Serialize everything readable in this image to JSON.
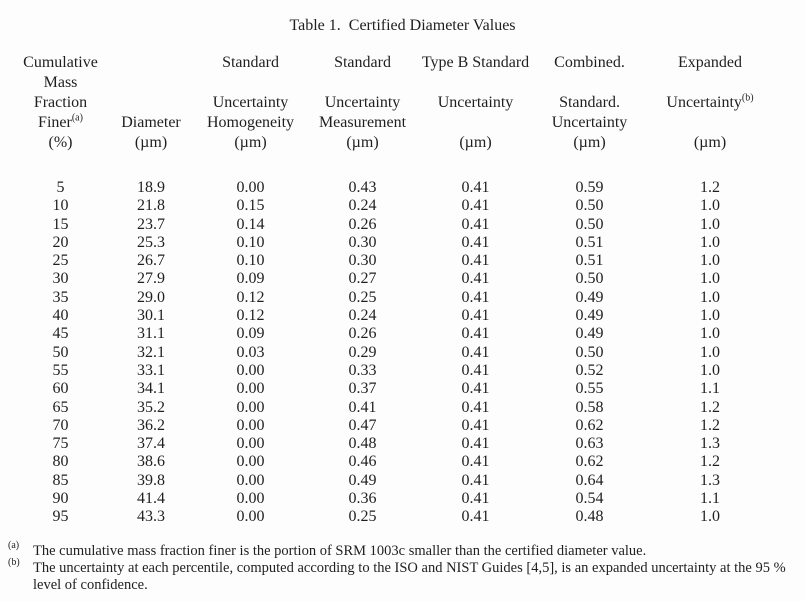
{
  "title": "Table 1.  Certified Diameter Values",
  "table": {
    "header_rows": [
      [
        "Cumulative",
        "",
        "Standard",
        "Standard",
        "Type B Standard",
        "Combined.",
        "Expanded"
      ],
      [
        "Mass Fraction",
        "",
        "Uncertainty",
        "Uncertainty",
        "Uncertainty",
        "Standard.",
        "Uncertainty^(b)"
      ],
      [
        "Finer^(a)",
        "Diameter",
        "Homogeneity",
        "Measurement",
        "",
        "Uncertainty",
        ""
      ],
      [
        "(%)",
        "(µm)",
        "(µm)",
        "(µm)",
        "(µm)",
        "(µm)",
        "(µm)"
      ]
    ],
    "rows": [
      [
        "5",
        "18.9",
        "0.00",
        "0.43",
        "0.41",
        "0.59",
        "1.2"
      ],
      [
        "10",
        "21.8",
        "0.15",
        "0.24",
        "0.41",
        "0.50",
        "1.0"
      ],
      [
        "15",
        "23.7",
        "0.14",
        "0.26",
        "0.41",
        "0.50",
        "1.0"
      ],
      [
        "20",
        "25.3",
        "0.10",
        "0.30",
        "0.41",
        "0.51",
        "1.0"
      ],
      [
        "25",
        "26.7",
        "0.10",
        "0.30",
        "0.41",
        "0.51",
        "1.0"
      ],
      [
        "30",
        "27.9",
        "0.09",
        "0.27",
        "0.41",
        "0.50",
        "1.0"
      ],
      [
        "35",
        "29.0",
        "0.12",
        "0.25",
        "0.41",
        "0.49",
        "1.0"
      ],
      [
        "40",
        "30.1",
        "0.12",
        "0.24",
        "0.41",
        "0.49",
        "1.0"
      ],
      [
        "45",
        "31.1",
        "0.09",
        "0.26",
        "0.41",
        "0.49",
        "1.0"
      ],
      [
        "50",
        "32.1",
        "0.03",
        "0.29",
        "0.41",
        "0.50",
        "1.0"
      ],
      [
        "55",
        "33.1",
        "0.00",
        "0.33",
        "0.41",
        "0.52",
        "1.0"
      ],
      [
        "60",
        "34.1",
        "0.00",
        "0.37",
        "0.41",
        "0.55",
        "1.1"
      ],
      [
        "65",
        "35.2",
        "0.00",
        "0.41",
        "0.41",
        "0.58",
        "1.2"
      ],
      [
        "70",
        "36.2",
        "0.00",
        "0.47",
        "0.41",
        "0.62",
        "1.2"
      ],
      [
        "75",
        "37.4",
        "0.00",
        "0.48",
        "0.41",
        "0.63",
        "1.3"
      ],
      [
        "80",
        "38.6",
        "0.00",
        "0.46",
        "0.41",
        "0.62",
        "1.2"
      ],
      [
        "85",
        "39.8",
        "0.00",
        "0.49",
        "0.41",
        "0.64",
        "1.3"
      ],
      [
        "90",
        "41.4",
        "0.00",
        "0.36",
        "0.41",
        "0.54",
        "1.1"
      ],
      [
        "95",
        "43.3",
        "0.00",
        "0.25",
        "0.41",
        "0.48",
        "1.0"
      ]
    ]
  },
  "footnotes": [
    {
      "marker": "(a)",
      "text": "The cumulative mass fraction finer is the portion of SRM 1003c smaller than the certified diameter value."
    },
    {
      "marker": "(b)",
      "text": "The uncertainty at each percentile, computed according to the ISO and NIST Guides [4,5], is an expanded uncertainty at the 95 %\nlevel of confidence."
    }
  ],
  "colors": {
    "text": "#1f1f1f",
    "background": "#fdfdfd"
  }
}
